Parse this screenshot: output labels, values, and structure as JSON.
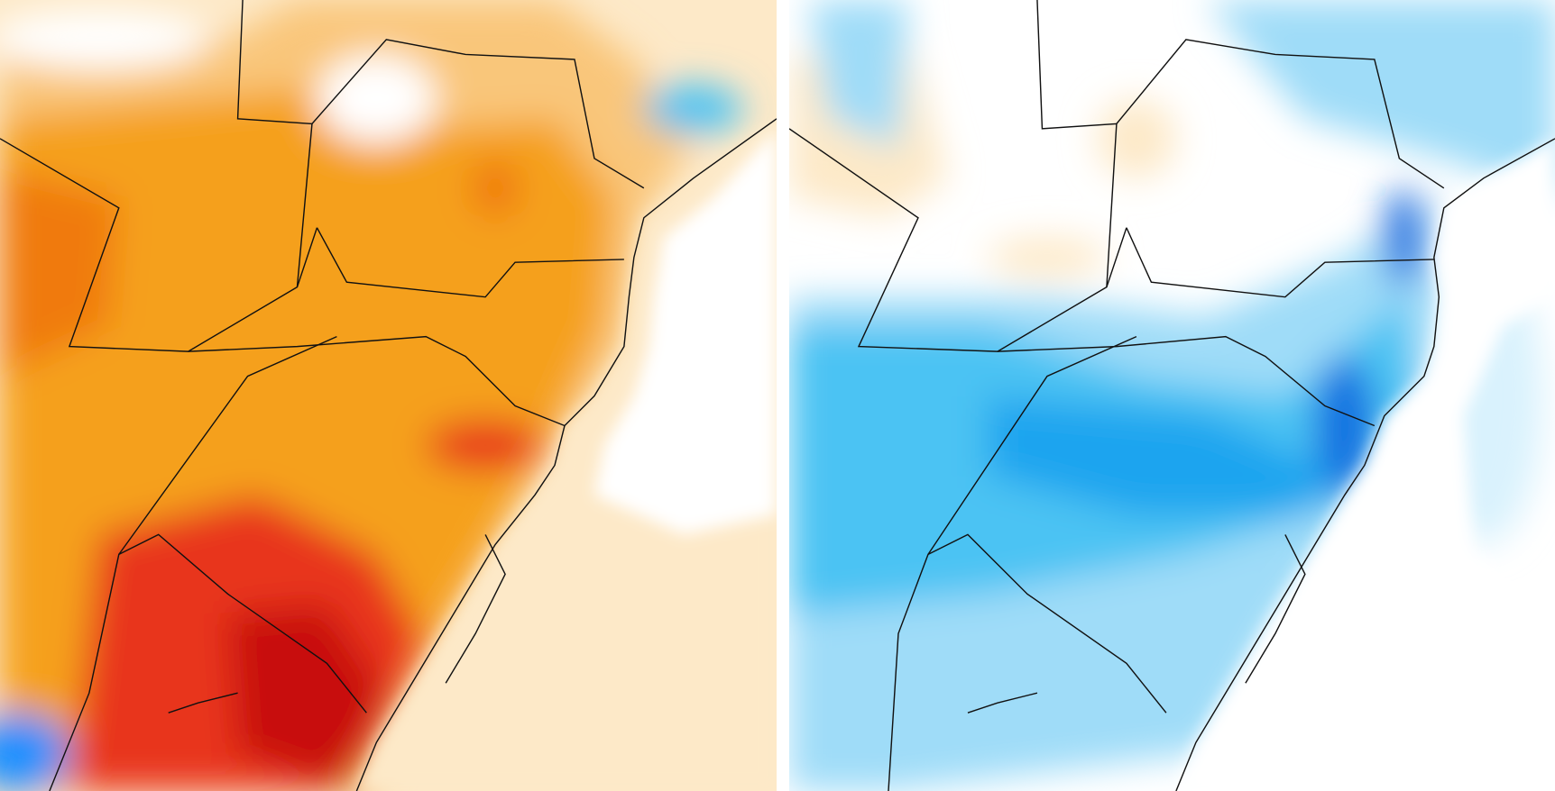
{
  "panels": [
    {
      "id": "left",
      "palette": {
        "ocean": "#ffffff",
        "weak": "#fde9c8",
        "light": "#f9c67a",
        "medium": "#f5a01a",
        "strong": "#f07a10",
        "very_strong": "#e8361a",
        "extreme": "#c80a0a",
        "cold_spot": "#1e90ff",
        "cold_weak": "#cfeefc"
      }
    },
    {
      "id": "right",
      "palette": {
        "ocean": "#ffffff",
        "weak": "#d9f2fd",
        "light": "#9fdcf8",
        "medium": "#4cc3f3",
        "strong": "#1aa4ef",
        "very_strong": "#0a6ee0",
        "extreme": "#0a3fc8",
        "warm_weak": "#fde9c8"
      }
    }
  ],
  "line_color": "#111111"
}
